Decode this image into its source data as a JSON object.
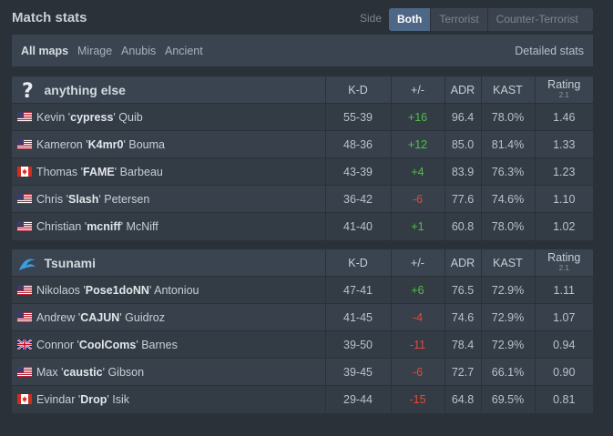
{
  "header": {
    "title": "Match stats",
    "side_label": "Side",
    "side_options": [
      {
        "label": "Both",
        "active": true
      },
      {
        "label": "Terrorist",
        "active": false
      },
      {
        "label": "Counter-Terrorist",
        "active": false
      }
    ]
  },
  "maps": {
    "tabs": [
      {
        "label": "All maps",
        "active": true
      },
      {
        "label": "Mirage",
        "active": false
      },
      {
        "label": "Anubis",
        "active": false
      },
      {
        "label": "Ancient",
        "active": false
      }
    ],
    "detailed_label": "Detailed stats"
  },
  "columns": {
    "kd": "K-D",
    "pm": "+/-",
    "adr": "ADR",
    "kast": "KAST",
    "rating": "Rating",
    "rating_version": "2.1"
  },
  "colors": {
    "positive": "#4ec147",
    "negative": "#e24b3a",
    "accent": "#4e6787"
  },
  "teams": [
    {
      "name": "anything else",
      "logo": "question-mark-icon",
      "players": [
        {
          "first": "Kevin",
          "nick": "cypress",
          "last": "Quib",
          "flag": "us",
          "kd": "55-39",
          "pm": "+16",
          "adr": "96.4",
          "kast": "78.0%",
          "rating": "1.46"
        },
        {
          "first": "Kameron",
          "nick": "K4mr0",
          "last": "Bouma",
          "flag": "us",
          "kd": "48-36",
          "pm": "+12",
          "adr": "85.0",
          "kast": "81.4%",
          "rating": "1.33"
        },
        {
          "first": "Thomas",
          "nick": "FAME",
          "last": "Barbeau",
          "flag": "ca",
          "kd": "43-39",
          "pm": "+4",
          "adr": "83.9",
          "kast": "76.3%",
          "rating": "1.23"
        },
        {
          "first": "Chris",
          "nick": "Slash",
          "last": "Petersen",
          "flag": "us",
          "kd": "36-42",
          "pm": "-6",
          "adr": "77.6",
          "kast": "74.6%",
          "rating": "1.10"
        },
        {
          "first": "Christian",
          "nick": "mcniff",
          "last": "McNiff",
          "flag": "us",
          "kd": "41-40",
          "pm": "+1",
          "adr": "60.8",
          "kast": "78.0%",
          "rating": "1.02"
        }
      ]
    },
    {
      "name": "Tsunami",
      "logo": "wave-icon",
      "players": [
        {
          "first": "Nikolaos",
          "nick": "Pose1doNN",
          "last": "Antoniou",
          "flag": "us",
          "kd": "47-41",
          "pm": "+6",
          "adr": "76.5",
          "kast": "72.9%",
          "rating": "1.11"
        },
        {
          "first": "Andrew",
          "nick": "CAJUN",
          "last": "Guidroz",
          "flag": "us",
          "kd": "41-45",
          "pm": "-4",
          "adr": "74.6",
          "kast": "72.9%",
          "rating": "1.07"
        },
        {
          "first": "Connor",
          "nick": "CoolComs",
          "last": "Barnes",
          "flag": "gb",
          "kd": "39-50",
          "pm": "-11",
          "adr": "78.4",
          "kast": "72.9%",
          "rating": "0.94"
        },
        {
          "first": "Max",
          "nick": "caustic",
          "last": "Gibson",
          "flag": "us",
          "kd": "39-45",
          "pm": "-6",
          "adr": "72.7",
          "kast": "66.1%",
          "rating": "0.90"
        },
        {
          "first": "Evindar",
          "nick": "Drop",
          "last": "Isik",
          "flag": "ca",
          "kd": "29-44",
          "pm": "-15",
          "adr": "64.8",
          "kast": "69.5%",
          "rating": "0.81"
        }
      ]
    }
  ]
}
